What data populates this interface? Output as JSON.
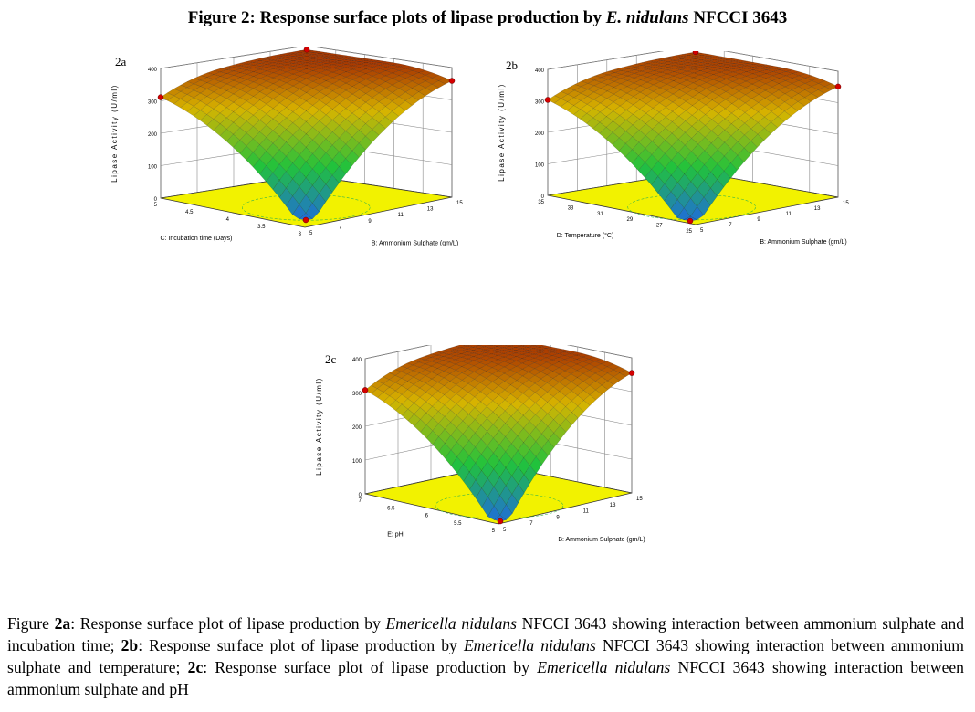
{
  "figure": {
    "title_prefix": "Figure 2: Response surface plots of lipase production by ",
    "title_species": "E. nidulans",
    "title_suffix": " NFCCI 3643"
  },
  "colors": {
    "floor": "#f2f200",
    "surface_low": "#1f6fd6",
    "surface_mid": "#21c23c",
    "surface_high": "#d7b400",
    "surface_top": "#a52a00",
    "point": "#d40000"
  },
  "panels": [
    {
      "label": "2a",
      "zlabel": "Lipase Activity (U/ml)",
      "zticks": [
        "0",
        "100",
        "200",
        "300",
        "400"
      ],
      "ylabel": "C: Incubation time (Days)",
      "yticks": [
        "3",
        "3.5",
        "4",
        "4.5",
        "5"
      ],
      "xlabel": "B: Ammonium Sulphate (gm/L)",
      "xticks": [
        "5",
        "7",
        "9",
        "11",
        "13",
        "15"
      ]
    },
    {
      "label": "2b",
      "zlabel": "Lipase Activity (U/ml)",
      "zticks": [
        "0",
        "100",
        "200",
        "300",
        "400"
      ],
      "ylabel": "D: Temperature (°C)",
      "yticks": [
        "25",
        "27",
        "29",
        "31",
        "33",
        "35"
      ],
      "xlabel": "B: Ammonium Sulphate (gm/L)",
      "xticks": [
        "5",
        "7",
        "9",
        "11",
        "13",
        "15"
      ]
    },
    {
      "label": "2c",
      "zlabel": "Lipase Activity (U/ml)",
      "zticks": [
        "0",
        "100",
        "200",
        "300",
        "400"
      ],
      "ylabel": "E: pH",
      "yticks": [
        "5",
        "5.5",
        "6",
        "6.5",
        "7"
      ],
      "xlabel": "B: Ammonium Sulphate (gm/L)",
      "xticks": [
        "5",
        "7",
        "9",
        "11",
        "13",
        "15"
      ]
    }
  ],
  "caption": {
    "p1": "Figure ",
    "b1": "2a",
    "p2": ": Response surface plot of lipase production by ",
    "i1": "Emericella nidulans",
    "p3": " NFCCI 3643 showing interaction between ammonium sulphate and incubation time; ",
    "b2": "2b",
    "p4": ": Response surface plot of lipase production by ",
    "i2": "Emericella nidulans",
    "p5": " NFCCI 3643 showing interaction between ammonium sulphate and temperature; ",
    "b3": "2c",
    "p6": ": Response surface plot of lipase production by ",
    "i3": "Emericella nidulans",
    "p7": " NFCCI 3643 showing interaction between ammonium sulphate and pH"
  }
}
